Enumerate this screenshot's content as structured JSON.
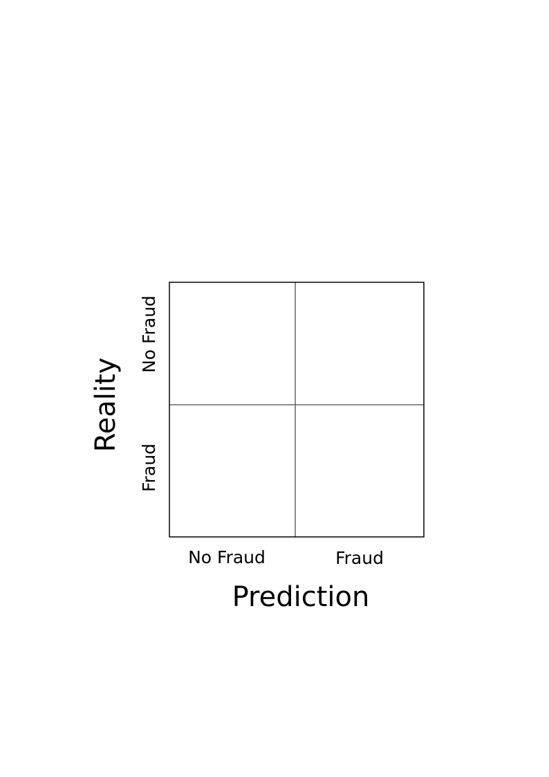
{
  "matrix": {
    "x_axis_title": "Prediction",
    "y_axis_title": "Reality",
    "columns": [
      "No Fraud",
      "Fraud"
    ],
    "rows": [
      "No Fraud",
      "Fraud"
    ],
    "cells": [
      [
        "",
        ""
      ],
      [
        "",
        ""
      ]
    ]
  }
}
